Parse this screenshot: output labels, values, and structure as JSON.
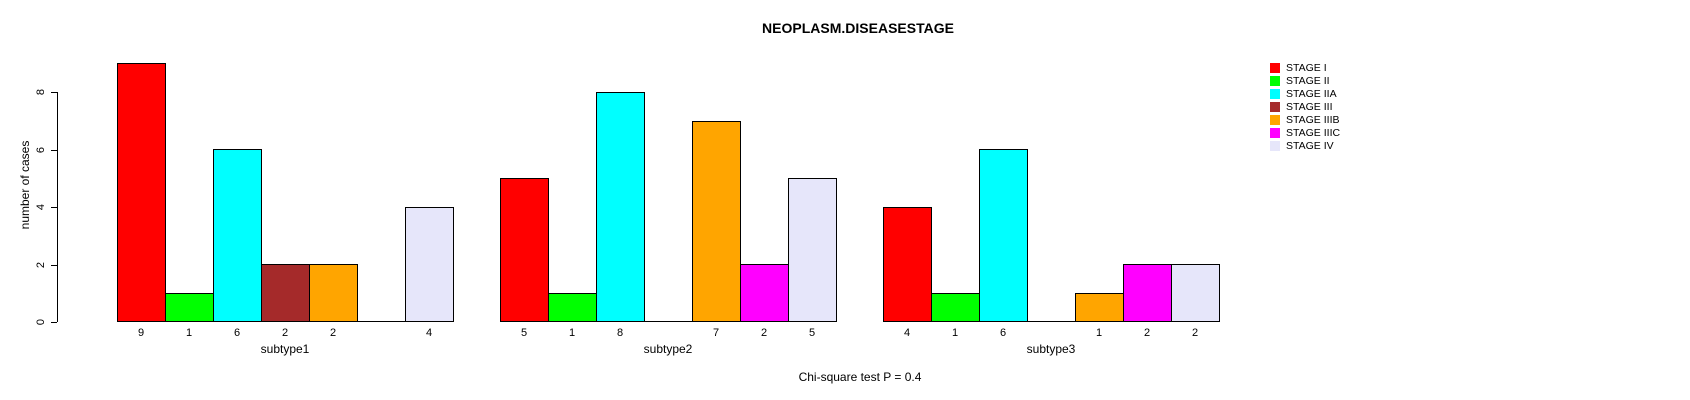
{
  "title": "NEOPLASM.DISEASESTAGE",
  "footnote": "Chi-square test P = 0.4",
  "chart_data": {
    "type": "bar",
    "grouped": true,
    "title": "NEOPLASM.DISEASESTAGE",
    "xlabel": "",
    "ylabel": "number of cases",
    "categories": [
      "subtype1",
      "subtype2",
      "subtype3"
    ],
    "series": [
      {
        "name": "STAGE I",
        "color": "#FF0000",
        "values": [
          9,
          5,
          4
        ]
      },
      {
        "name": "STAGE II",
        "color": "#00FF00",
        "values": [
          1,
          1,
          1
        ]
      },
      {
        "name": "STAGE IIA",
        "color": "#00FFFF",
        "values": [
          6,
          8,
          6
        ]
      },
      {
        "name": "STAGE III",
        "color": "#A52A2A",
        "values": [
          2,
          0,
          0
        ]
      },
      {
        "name": "STAGE IIIB",
        "color": "#FFA500",
        "values": [
          2,
          7,
          1
        ]
      },
      {
        "name": "STAGE IIIC",
        "color": "#FF00FF",
        "values": [
          0,
          2,
          2
        ]
      },
      {
        "name": "STAGE IV",
        "color": "#E6E6FA",
        "values": [
          4,
          5,
          2
        ]
      }
    ],
    "yticks": [
      0,
      2,
      4,
      6,
      8
    ],
    "ylim": [
      0,
      9
    ],
    "grid": false,
    "bar_value_labels": true,
    "zero_bars_drawn_as_baseline_segment": true,
    "legend_position": "topright",
    "legend_entries": [
      "STAGE I",
      "STAGE II",
      "STAGE IIA",
      "STAGE III",
      "STAGE IIIB",
      "STAGE IIIC",
      "STAGE IV"
    ],
    "annotation": "Chi-square test P = 0.4"
  }
}
